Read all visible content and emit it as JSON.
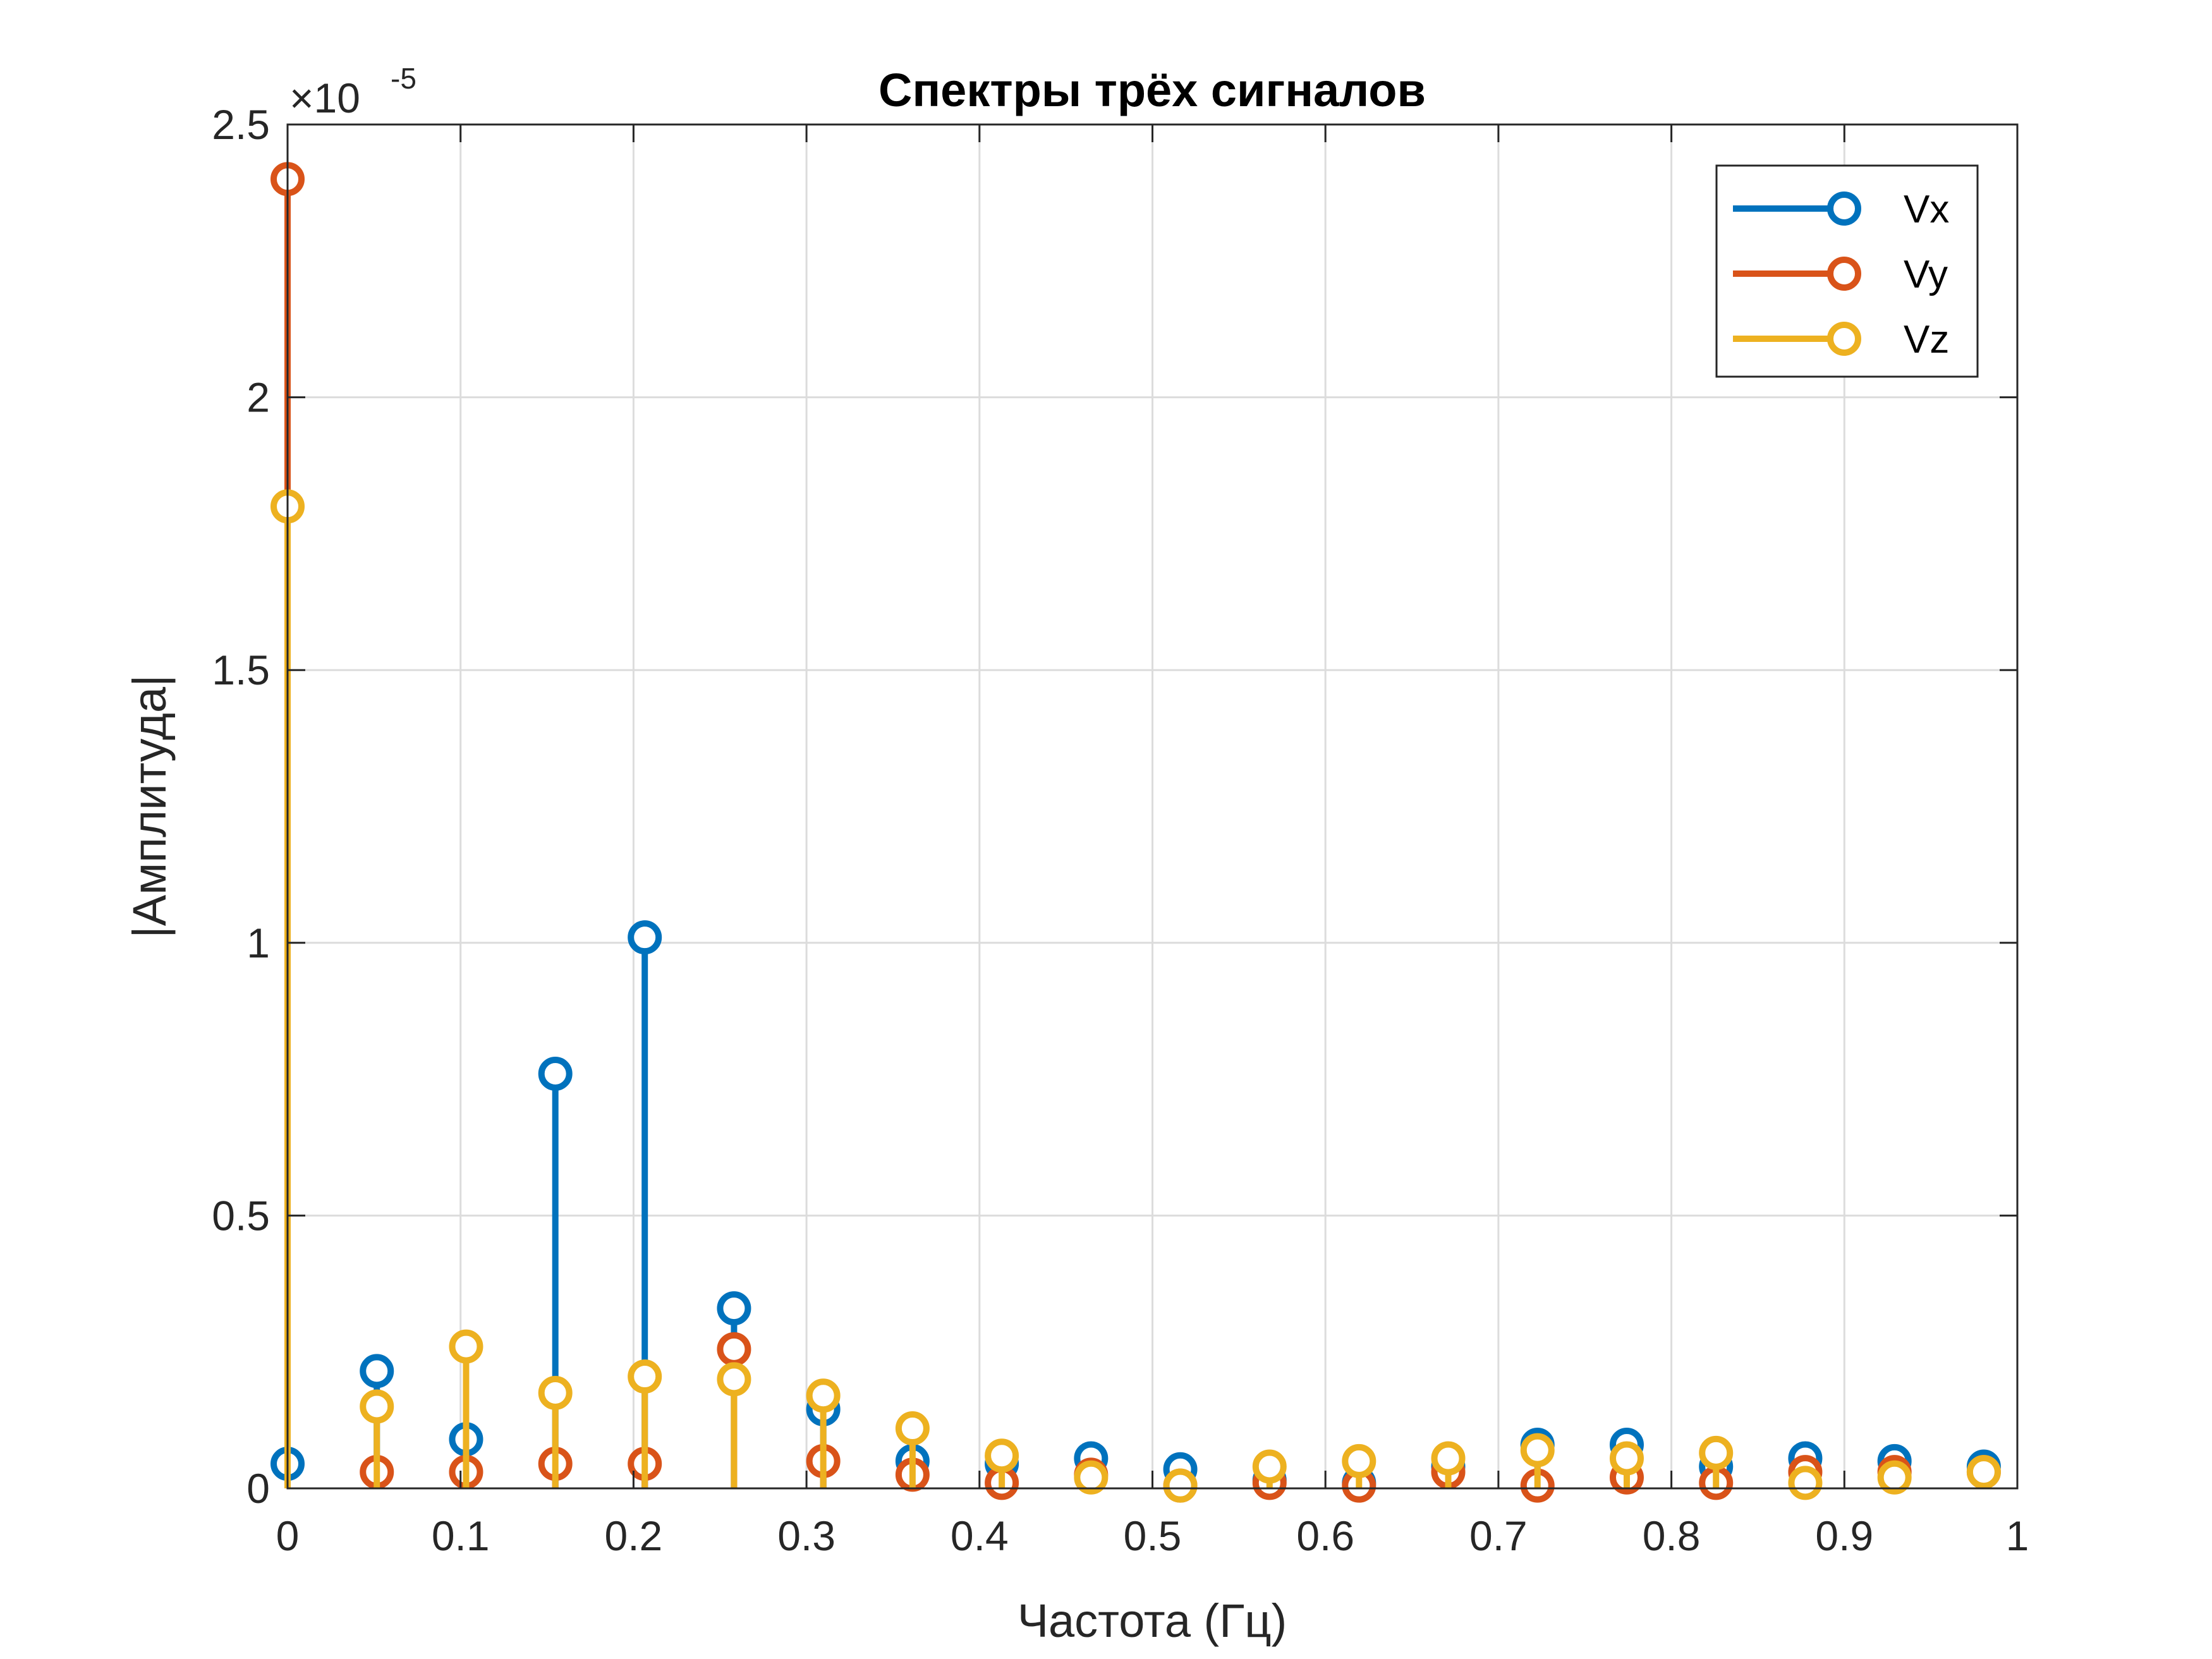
{
  "chart_data": {
    "type": "stem",
    "title": "Спектры трёх сигналов",
    "xlabel": "Частота (Гц)",
    "ylabel": "|Амплитуда|",
    "y_exponent": {
      "base": "×10",
      "power": "-5"
    },
    "xlim": [
      0,
      1
    ],
    "ylim": [
      0,
      2.5
    ],
    "x_ticks": [
      "0",
      "0.1",
      "0.2",
      "0.3",
      "0.4",
      "0.5",
      "0.6",
      "0.7",
      "0.8",
      "0.9",
      "1"
    ],
    "y_ticks": [
      "0",
      "0.5",
      "1",
      "1.5",
      "2",
      "2.5"
    ],
    "grid": true,
    "legend_position": "top-right",
    "x": [
      0,
      0.0516,
      0.1032,
      0.1548,
      0.2065,
      0.2581,
      0.3097,
      0.3613,
      0.4129,
      0.4645,
      0.5161,
      0.5677,
      0.6194,
      0.671,
      0.7226,
      0.7742,
      0.8258,
      0.8774,
      0.929,
      0.9806
    ],
    "series": [
      {
        "name": "Vx",
        "color": "#0072BD",
        "values": [
          0.045,
          0.215,
          0.09,
          0.76,
          1.01,
          0.33,
          0.145,
          0.05,
          0.045,
          0.055,
          0.035,
          0.015,
          0.01,
          0.04,
          0.08,
          0.08,
          0.04,
          0.055,
          0.05,
          0.04
        ]
      },
      {
        "name": "Vy",
        "color": "#D95319",
        "values": [
          2.4,
          0.03,
          0.03,
          0.045,
          0.045,
          0.255,
          0.05,
          0.025,
          0.01,
          0.025,
          0.005,
          0.01,
          0.005,
          0.03,
          0.005,
          0.02,
          0.01,
          0.03,
          0.03,
          0.03
        ]
      },
      {
        "name": "Vz",
        "color": "#EDB120",
        "values": [
          1.8,
          0.15,
          0.26,
          0.175,
          0.205,
          0.2,
          0.17,
          0.11,
          0.06,
          0.02,
          0.005,
          0.04,
          0.05,
          0.055,
          0.07,
          0.055,
          0.065,
          0.01,
          0.02,
          0.03
        ]
      }
    ]
  }
}
